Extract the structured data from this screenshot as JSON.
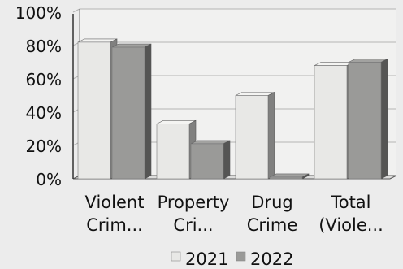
{
  "chart_data": {
    "type": "bar",
    "categories": [
      [
        "Violent",
        "Crim..."
      ],
      [
        "Property",
        "Cri..."
      ],
      [
        "Drug",
        "Crime"
      ],
      [
        "Total",
        "(Viole..."
      ]
    ],
    "series": [
      {
        "name": "2021",
        "values": [
          82,
          33,
          50,
          68
        ],
        "color": "#e8e8e6"
      },
      {
        "name": "2022",
        "values": [
          79,
          21,
          1,
          70
        ],
        "color": "#9a9a98"
      }
    ],
    "y_ticks": [
      "0%",
      "20%",
      "40%",
      "60%",
      "80%",
      "100%"
    ],
    "ylim": [
      0,
      100
    ],
    "grid": true,
    "legend_position": "bottom",
    "style": "3d-bars"
  }
}
